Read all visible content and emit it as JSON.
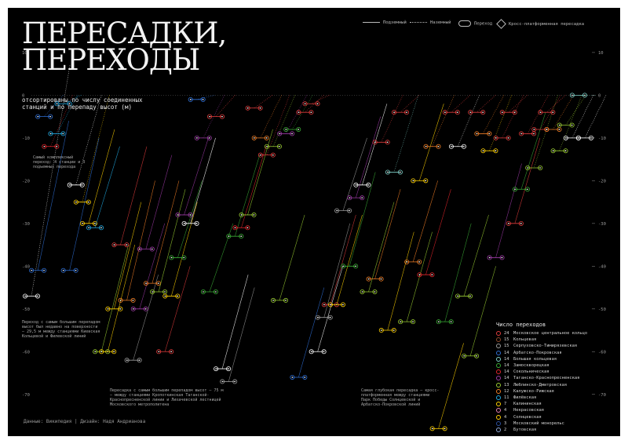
{
  "title": "ПЕРЕСАДКИ,\nПЕРЕХОДЫ",
  "subtitle": "отсортированы по числу соединенных станций и по перепаду высот (м)",
  "credits": "Данные: Википедия  |  Дизайн: Надя Андрианова",
  "top_legend": {
    "above_ground": "Подземный",
    "ground": "Наземный",
    "transfer": "Переход",
    "cross_platform": "Кросс-платформенная пересадка"
  },
  "annotations": {
    "most_complex": "Самый комплексный переход: 4 станции и 3 подъемных перехода",
    "max_height": "Переход с самым большим перепадом высот был недавно на поверхности – 29,5 м между станциями Киевская Кольцевой и Филевской линий",
    "max_drop": "Пересадка с самым большим перепадом высот – 75 м – между станциями Кропоткинская Таганской-Краснопресненской линии и Лихачевской лестницей Московского метрополитена",
    "deepest": "Самая глубокая пересадка – кросс-платформенная между станциями Парк Победы Солнцевской и Арбатско-Покровской линий"
  },
  "legend_title": "Число переходов",
  "legend": [
    {
      "count": "24",
      "name": "Московское центральное кольцо",
      "color": "#e03c3c"
    },
    {
      "count": "15",
      "name": "Кольцевая",
      "color": "#8b4a2b"
    },
    {
      "count": "15",
      "name": "Серпуховско-Тимирязевская",
      "color": "#9a9a9a"
    },
    {
      "count": "14",
      "name": "Арбатско-Покровская",
      "color": "#2f6fd6"
    },
    {
      "count": "14",
      "name": "Большая кольцевая",
      "color": "#7fd0c8"
    },
    {
      "count": "14",
      "name": "Замоскворецкая",
      "color": "#3aaa35"
    },
    {
      "count": "14",
      "name": "Сокольническая",
      "color": "#e4262c"
    },
    {
      "count": "14",
      "name": "Таганско-Краснопресненская",
      "color": "#9b3aa4"
    },
    {
      "count": "13",
      "name": "Люблинско-Дмитровская",
      "color": "#9acd32"
    },
    {
      "count": "12",
      "name": "Калужско-Рижская",
      "color": "#f07e26"
    },
    {
      "count": "11",
      "name": "Филёвская",
      "color": "#21a8e0"
    },
    {
      "count": "7",
      "name": "Калининская",
      "color": "#ffd100"
    },
    {
      "count": "4",
      "name": "Некрасовская",
      "color": "#e67fb3"
    },
    {
      "count": "4",
      "name": "Солнцевская",
      "color": "#ffcc00"
    },
    {
      "count": "3",
      "name": "Московский монорельс",
      "color": "#2b4fa0"
    },
    {
      "count": "2",
      "name": "Бутовская",
      "color": "#8fa8d8"
    }
  ],
  "chart_data": {
    "type": "scatter",
    "description_axis": "depth",
    "yticks": [
      10,
      0,
      -10,
      -20,
      -30,
      -40,
      -50,
      -60,
      -70
    ],
    "ylim": [
      12,
      -75
    ],
    "dotted_threshold": 0,
    "transfers": [
      {
        "x": 1,
        "y1": -47,
        "y2": -47,
        "c": "#ffffff",
        "d": -47,
        "top": 7
      },
      {
        "x": 2,
        "y1": -41,
        "y2": -41,
        "c": "#2f6fd6",
        "d": -41,
        "top": -6
      },
      {
        "x": 3,
        "y1": -5,
        "y2": -5,
        "c": "#2f6fd6",
        "d": -5,
        "top": 0
      },
      {
        "x": 4,
        "y1": -12,
        "y2": -12,
        "c": "#e4262c",
        "d": -12,
        "top": 0
      },
      {
        "x": 5,
        "y1": -9,
        "y2": -9,
        "c": "#21a8e0",
        "d": -9,
        "top": 0
      },
      {
        "x": 6,
        "y1": -2,
        "y2": -2,
        "c": "#21a8e0",
        "d": -2,
        "top": 0
      },
      {
        "x": 7,
        "y1": -40,
        "y2": -41,
        "c": "#2f6fd6",
        "d": -41,
        "top": -10
      },
      {
        "x": 8,
        "y1": -21,
        "y2": -21,
        "c": "#ffffff",
        "d": -21,
        "top": 0
      },
      {
        "x": 9,
        "y1": -25,
        "y2": -25,
        "c": "#ffd100",
        "d": -25,
        "top": 0
      },
      {
        "x": 10,
        "y1": -30,
        "y2": -30,
        "c": "#ffd100",
        "d": -30,
        "top": -8
      },
      {
        "x": 11,
        "y1": -31,
        "y2": -31,
        "c": "#21a8e0",
        "d": -31,
        "top": -12
      },
      {
        "x": 12,
        "y1": -60,
        "y2": -60,
        "c": "#9acd32",
        "d": -60,
        "top": -35
      },
      {
        "x": 13,
        "y1": -60,
        "y2": -60,
        "c": "#ffd100",
        "d": -60,
        "top": -35
      },
      {
        "x": 14,
        "y1": -50,
        "y2": -50,
        "c": "#ffd100",
        "d": -50,
        "top": -25
      },
      {
        "x": 15,
        "y1": -35,
        "y2": -35,
        "c": "#e03c3c",
        "d": -35,
        "top": -12
      },
      {
        "x": 16,
        "y1": -48,
        "y2": -48,
        "c": "#f07e26",
        "d": -48,
        "top": -20
      },
      {
        "x": 17,
        "y1": -62,
        "y2": -62,
        "c": "#9a9a9a",
        "d": -62,
        "top": -42
      },
      {
        "x": 18,
        "y1": -50,
        "y2": -50,
        "c": "#9b3aa4",
        "d": -50,
        "top": -30
      },
      {
        "x": 19,
        "y1": -36,
        "y2": -36,
        "c": "#9b3aa4",
        "d": -36,
        "top": -14
      },
      {
        "x": 20,
        "y1": -44,
        "y2": -44,
        "c": "#f07e26",
        "d": -44,
        "top": -20
      },
      {
        "x": 21,
        "y1": -46,
        "y2": -46,
        "c": "#9acd32",
        "d": -46,
        "top": -22
      },
      {
        "x": 22,
        "y1": -60,
        "y2": -60,
        "c": "#e03c3c",
        "d": -60,
        "top": -40
      },
      {
        "x": 23,
        "y1": -47,
        "y2": -47,
        "c": "#ffd100",
        "d": -47,
        "top": -25
      },
      {
        "x": 24,
        "y1": -38,
        "y2": -38,
        "c": "#3aaa35",
        "d": -38,
        "top": -20
      },
      {
        "x": 25,
        "y1": -28,
        "y2": -28,
        "c": "#9b3aa4",
        "d": -28,
        "top": -10
      },
      {
        "x": 26,
        "y1": -30,
        "y2": -30,
        "c": "#ffffff",
        "d": -30,
        "top": -10
      },
      {
        "x": 27,
        "y1": -1,
        "y2": -1,
        "c": "#2f6fd6",
        "d": -1,
        "top": 0
      },
      {
        "x": 28,
        "y1": -10,
        "y2": -10,
        "c": "#9b3aa4",
        "d": -10,
        "top": 0
      },
      {
        "x": 29,
        "y1": -46,
        "y2": -46,
        "c": "#3aaa35",
        "d": -46,
        "top": -30
      },
      {
        "x": 30,
        "y1": -5,
        "y2": -5,
        "c": "#e03c3c",
        "d": -5,
        "top": 0
      },
      {
        "x": 31,
        "y1": -64,
        "y2": -64,
        "c": "#ffffff",
        "d": -64,
        "top": -42
      },
      {
        "x": 32,
        "y1": -67,
        "y2": -67,
        "c": "#9a9a9a",
        "d": -67,
        "top": -45
      },
      {
        "x": 33,
        "y1": -33,
        "y2": -33,
        "c": "#3aaa35",
        "d": -33,
        "top": -14
      },
      {
        "x": 34,
        "y1": -31,
        "y2": -31,
        "c": "#e4262c",
        "d": -31,
        "top": -12
      },
      {
        "x": 35,
        "y1": -28,
        "y2": -28,
        "c": "#9acd32",
        "d": -28,
        "top": -8
      },
      {
        "x": 36,
        "y1": -3,
        "y2": -3,
        "c": "#e03c3c",
        "d": -3,
        "top": 0
      },
      {
        "x": 37,
        "y1": -10,
        "y2": -10,
        "c": "#f07e26",
        "d": -10,
        "top": 0
      },
      {
        "x": 38,
        "y1": -14,
        "y2": -14,
        "c": "#e03c3c",
        "d": -14,
        "top": 0
      },
      {
        "x": 39,
        "y1": -12,
        "y2": -12,
        "c": "#9acd32",
        "d": -12,
        "top": 0
      },
      {
        "x": 40,
        "y1": -48,
        "y2": -48,
        "c": "#9acd32",
        "d": -48,
        "top": -28
      },
      {
        "x": 41,
        "y1": -9,
        "y2": -9,
        "c": "#9b3aa4",
        "d": -9,
        "top": 0
      },
      {
        "x": 42,
        "y1": -8,
        "y2": -8,
        "c": "#3aaa35",
        "d": -8,
        "top": 0
      },
      {
        "x": 43,
        "y1": -66,
        "y2": -66,
        "c": "#2f6fd6",
        "d": -66,
        "top": -45
      },
      {
        "x": 44,
        "y1": -4,
        "y2": -4,
        "c": "#e03c3c",
        "d": -4,
        "top": 0
      },
      {
        "x": 45,
        "y1": -2,
        "y2": -2,
        "c": "#e03c3c",
        "d": -2,
        "top": 0
      },
      {
        "x": 46,
        "y1": -60,
        "y2": -60,
        "c": "#ffffff",
        "d": -60,
        "top": -40
      },
      {
        "x": 47,
        "y1": -52,
        "y2": -52,
        "c": "#9a9a9a",
        "d": -52,
        "top": -30
      },
      {
        "x": 48,
        "y1": -49,
        "y2": -49,
        "c": "#e03c3c",
        "d": -49,
        "top": -28
      },
      {
        "x": 49,
        "y1": -49,
        "y2": -49,
        "c": "#ffd100",
        "d": -49,
        "top": -28
      },
      {
        "x": 50,
        "y1": -27,
        "y2": -27,
        "c": "#9a9a9a",
        "d": -27,
        "top": -10
      },
      {
        "x": 51,
        "y1": -40,
        "y2": -40,
        "c": "#3aaa35",
        "d": -40,
        "top": -18
      },
      {
        "x": 52,
        "y1": -24,
        "y2": -24,
        "c": "#9b3aa4",
        "d": -24,
        "top": -5
      },
      {
        "x": 53,
        "y1": -21,
        "y2": -21,
        "c": "#ffffff",
        "d": -21,
        "top": -2
      },
      {
        "x": 54,
        "y1": -46,
        "y2": -46,
        "c": "#9acd32",
        "d": -46,
        "top": -25
      },
      {
        "x": 55,
        "y1": -43,
        "y2": -43,
        "c": "#f07e26",
        "d": -43,
        "top": -22
      },
      {
        "x": 56,
        "y1": -11,
        "y2": -11,
        "c": "#e03c3c",
        "d": -11,
        "top": 0
      },
      {
        "x": 57,
        "y1": -55,
        "y2": -55,
        "c": "#ffd100",
        "d": -55,
        "top": -32
      },
      {
        "x": 58,
        "y1": -18,
        "y2": -18,
        "c": "#7fd0c8",
        "d": -18,
        "top": 0
      },
      {
        "x": 59,
        "y1": -4,
        "y2": -4,
        "c": "#e03c3c",
        "d": -4,
        "top": 0
      },
      {
        "x": 60,
        "y1": -53,
        "y2": -53,
        "c": "#9acd32",
        "d": -53,
        "top": -32
      },
      {
        "x": 61,
        "y1": -39,
        "y2": -39,
        "c": "#f07e26",
        "d": -39,
        "top": -20
      },
      {
        "x": 62,
        "y1": -20,
        "y2": -20,
        "c": "#ffd100",
        "d": -20,
        "top": -2
      },
      {
        "x": 63,
        "y1": -42,
        "y2": -42,
        "c": "#e4262c",
        "d": -42,
        "top": -22
      },
      {
        "x": 64,
        "y1": -12,
        "y2": -12,
        "c": "#f07e26",
        "d": -12,
        "top": 0
      },
      {
        "x": 65,
        "y1": -78,
        "y2": -78,
        "c": "#ffd100",
        "d": -78,
        "top": -58
      },
      {
        "x": 66,
        "y1": -53,
        "y2": -53,
        "c": "#3aaa35",
        "d": -53,
        "top": -30
      },
      {
        "x": 67,
        "y1": -4,
        "y2": -4,
        "c": "#e03c3c",
        "d": -4,
        "top": 0
      },
      {
        "x": 68,
        "y1": -12,
        "y2": -12,
        "c": "#ffffff",
        "d": -12,
        "top": 0
      },
      {
        "x": 69,
        "y1": -47,
        "y2": -47,
        "c": "#9acd32",
        "d": -47,
        "top": -28
      },
      {
        "x": 70,
        "y1": -61,
        "y2": -61,
        "c": "#9acd32",
        "d": -61,
        "top": -40
      },
      {
        "x": 71,
        "y1": -4,
        "y2": -4,
        "c": "#e03c3c",
        "d": -4,
        "top": 0
      },
      {
        "x": 72,
        "y1": -9,
        "y2": -9,
        "c": "#f07e26",
        "d": -9,
        "top": 0
      },
      {
        "x": 73,
        "y1": -13,
        "y2": -13,
        "c": "#ffd100",
        "d": -13,
        "top": 0
      },
      {
        "x": 74,
        "y1": -38,
        "y2": -38,
        "c": "#9b3aa4",
        "d": -38,
        "top": -16
      },
      {
        "x": 75,
        "y1": -10,
        "y2": -10,
        "c": "#e03c3c",
        "d": -10,
        "top": 0
      },
      {
        "x": 76,
        "y1": -4,
        "y2": -4,
        "c": "#e03c3c",
        "d": -4,
        "top": 0
      },
      {
        "x": 77,
        "y1": -30,
        "y2": -30,
        "c": "#e03c3c",
        "d": -30,
        "top": -10
      },
      {
        "x": 78,
        "y1": -22,
        "y2": -22,
        "c": "#3aaa35",
        "d": -22,
        "top": -4
      },
      {
        "x": 79,
        "y1": -9,
        "y2": -9,
        "c": "#e03c3c",
        "d": -9,
        "top": 0
      },
      {
        "x": 80,
        "y1": -17,
        "y2": -17,
        "c": "#9acd32",
        "d": -17,
        "top": 0
      },
      {
        "x": 81,
        "y1": -8,
        "y2": -8,
        "c": "#e03c3c",
        "d": -8,
        "top": 0
      },
      {
        "x": 82,
        "y1": -4,
        "y2": -4,
        "c": "#e03c3c",
        "d": -4,
        "top": 0
      },
      {
        "x": 83,
        "y1": -8,
        "y2": -8,
        "c": "#f07e26",
        "d": -8,
        "top": 0
      },
      {
        "x": 84,
        "y1": -13,
        "y2": -13,
        "c": "#9acd32",
        "d": -13,
        "top": 0
      },
      {
        "x": 85,
        "y1": -7,
        "y2": -7,
        "c": "#9acd32",
        "d": -7,
        "top": 0
      },
      {
        "x": 86,
        "y1": -10,
        "y2": -10,
        "c": "#ffffff",
        "d": -10,
        "top": 0
      },
      {
        "x": 87,
        "y1": 0,
        "y2": 0,
        "c": "#7fd0c8",
        "d": 0,
        "top": 0
      },
      {
        "x": 88,
        "y1": -10,
        "y2": -10,
        "c": "#ffffff",
        "d": -10,
        "top": 0
      }
    ]
  }
}
